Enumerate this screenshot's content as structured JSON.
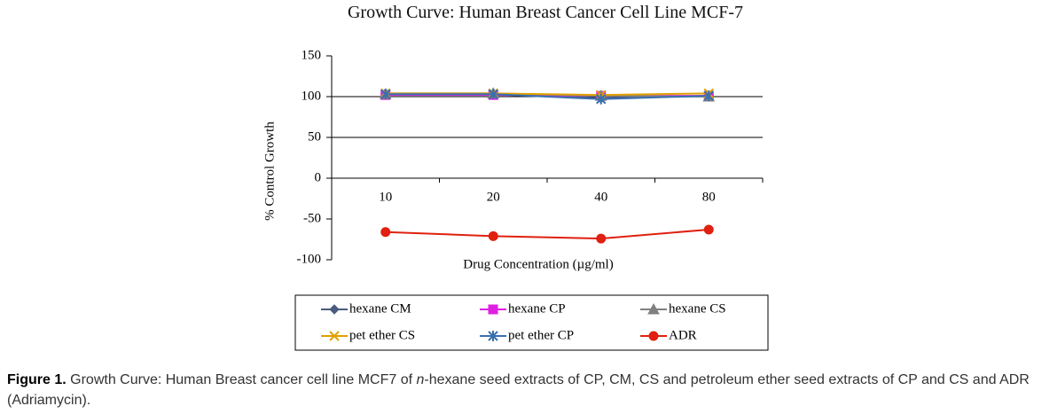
{
  "chart_data": {
    "type": "line",
    "title": "Growth Curve: Human Breast Cancer Cell Line MCF-7",
    "x_label": "Drug Concentration (µg/ml)",
    "y_label": "% Control Growth",
    "categories": [
      "10",
      "20",
      "40",
      "80"
    ],
    "ylim": [
      -100,
      150
    ],
    "yticks": [
      -100,
      -50,
      0,
      50,
      100,
      150
    ],
    "grid": true,
    "series": [
      {
        "name": "hexane CM",
        "color": "#4a5b7f",
        "marker": "diamond",
        "values": [
          104,
          104,
          98,
          101
        ]
      },
      {
        "name": "hexane CP",
        "color": "#e020e0",
        "marker": "square",
        "values": [
          102,
          102,
          101,
          101
        ]
      },
      {
        "name": "hexane CS",
        "color": "#808080",
        "marker": "triangle",
        "values": [
          103,
          104,
          101,
          100
        ]
      },
      {
        "name": "pet ether CS",
        "color": "#e0a000",
        "marker": "x",
        "values": [
          104,
          104,
          102,
          104
        ]
      },
      {
        "name": "pet ether CP",
        "color": "#3a6fb0",
        "marker": "star",
        "values": [
          103,
          103,
          97,
          101
        ]
      },
      {
        "name": "ADR",
        "color": "#e02010",
        "marker": "circle",
        "values": [
          -66,
          -71,
          -74,
          -63
        ]
      }
    ]
  },
  "caption": {
    "label": "Figure 1.",
    "parts": [
      "Growth Curve: Human Breast cancer cell line MCF7 of ",
      "n",
      "-hexane seed extracts of CP, CM, CS and petroleum ether seed extracts of CP and CS and ADR (Adriamycin)."
    ]
  }
}
